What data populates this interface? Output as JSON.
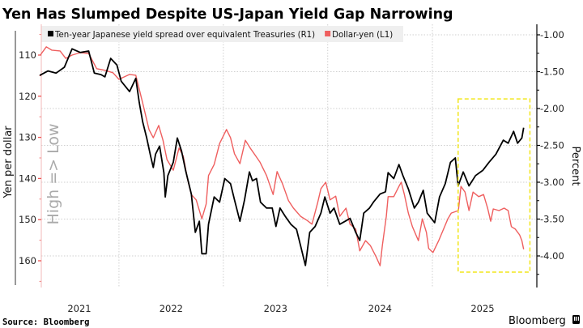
{
  "chart_data": {
    "type": "line",
    "title": "Yen Has Slumped Despite US-Japan Yield Gap Narrowing",
    "source": "Source: Bloomberg",
    "brand": "Bloomberg",
    "x_ticks": [
      "2021",
      "2022",
      "2023",
      "2024",
      "2025"
    ],
    "left_axis": {
      "label": "Yen per dollar",
      "annotation": "High => Low",
      "inverted": true,
      "range": [
        103,
        166.5
      ],
      "ticks": [
        "110",
        "120",
        "130",
        "140",
        "150",
        "160"
      ],
      "tick_values": [
        110,
        120,
        130,
        140,
        150,
        160
      ]
    },
    "right_axis": {
      "label": "Percent",
      "range": [
        -4.43,
        -0.89
      ],
      "ticks": [
        "-1.00",
        "-1.50",
        "-2.00",
        "-2.50",
        "-3.00",
        "-3.50",
        "-4.00"
      ],
      "tick_values": [
        -1.0,
        -1.5,
        -2.0,
        -2.5,
        -3.0,
        -3.5,
        -4.0
      ]
    },
    "grid": true,
    "legend_position": "top",
    "highlight_box": {
      "x": [
        "2025-04-01",
        "2025-12-08"
      ],
      "y_right": [
        -1.87,
        -4.22
      ],
      "color": "#f2e61c",
      "style": "dashed"
    },
    "series": [
      {
        "name": "Ten-year Japanese yield spread over equivalent Treasuries (R1)",
        "axis": "right",
        "color": "#000000",
        "points": [
          [
            "2021-03-30",
            -1.55
          ],
          [
            "2021-04-28",
            -1.49
          ],
          [
            "2021-05-26",
            -1.52
          ],
          [
            "2021-06-24",
            -1.44
          ],
          [
            "2021-07-21",
            -1.19
          ],
          [
            "2021-08-19",
            -1.24
          ],
          [
            "2021-09-17",
            -1.22
          ],
          [
            "2021-10-07",
            -1.52
          ],
          [
            "2021-10-30",
            -1.54
          ],
          [
            "2021-11-13",
            -1.57
          ],
          [
            "2021-12-03",
            -1.32
          ],
          [
            "2021-12-25",
            -1.41
          ],
          [
            "2022-01-09",
            -1.63
          ],
          [
            "2022-02-07",
            -1.77
          ],
          [
            "2022-03-01",
            -1.59
          ],
          [
            "2022-03-13",
            -1.92
          ],
          [
            "2022-03-25",
            -2.18
          ],
          [
            "2022-04-08",
            -2.4
          ],
          [
            "2022-04-22",
            -2.65
          ],
          [
            "2022-05-01",
            -2.8
          ],
          [
            "2022-05-09",
            -2.62
          ],
          [
            "2022-05-23",
            -2.51
          ],
          [
            "2022-06-07",
            -2.87
          ],
          [
            "2022-06-12",
            -3.2
          ],
          [
            "2022-06-21",
            -2.91
          ],
          [
            "2022-07-10",
            -2.73
          ],
          [
            "2022-07-24",
            -2.4
          ],
          [
            "2022-08-08",
            -2.58
          ],
          [
            "2022-08-22",
            -2.84
          ],
          [
            "2022-09-11",
            -3.16
          ],
          [
            "2022-09-25",
            -3.68
          ],
          [
            "2022-10-09",
            -3.53
          ],
          [
            "2022-10-18",
            -3.97
          ],
          [
            "2022-11-02",
            -3.97
          ],
          [
            "2022-11-10",
            -3.57
          ],
          [
            "2022-11-30",
            -3.2
          ],
          [
            "2022-12-19",
            -3.27
          ],
          [
            "2023-01-06",
            -2.95
          ],
          [
            "2023-01-26",
            -3.02
          ],
          [
            "2023-02-09",
            -3.24
          ],
          [
            "2023-02-28",
            -3.53
          ],
          [
            "2023-03-16",
            -3.24
          ],
          [
            "2023-04-02",
            -2.86
          ],
          [
            "2023-04-13",
            -2.98
          ],
          [
            "2023-04-27",
            -2.95
          ],
          [
            "2023-05-11",
            -3.27
          ],
          [
            "2023-06-01",
            -3.35
          ],
          [
            "2023-06-21",
            -3.35
          ],
          [
            "2023-07-04",
            -3.6
          ],
          [
            "2023-07-18",
            -3.35
          ],
          [
            "2023-08-05",
            -3.46
          ],
          [
            "2023-08-25",
            -3.57
          ],
          [
            "2023-09-14",
            -3.64
          ],
          [
            "2023-09-28",
            -3.86
          ],
          [
            "2023-10-15",
            -4.13
          ],
          [
            "2023-10-30",
            -3.68
          ],
          [
            "2023-11-18",
            -3.6
          ],
          [
            "2023-12-08",
            -3.42
          ],
          [
            "2023-12-22",
            -3.2
          ],
          [
            "2024-01-09",
            -3.42
          ],
          [
            "2024-01-23",
            -3.35
          ],
          [
            "2024-02-12",
            -3.57
          ],
          [
            "2024-03-02",
            -3.53
          ],
          [
            "2024-03-19",
            -3.49
          ],
          [
            "2024-04-08",
            -3.68
          ],
          [
            "2024-04-22",
            -3.79
          ],
          [
            "2024-05-06",
            -3.42
          ],
          [
            "2024-05-26",
            -3.35
          ],
          [
            "2024-06-09",
            -3.27
          ],
          [
            "2024-07-02",
            -3.16
          ],
          [
            "2024-07-21",
            -3.13
          ],
          [
            "2024-07-30",
            -2.87
          ],
          [
            "2024-08-19",
            -2.95
          ],
          [
            "2024-09-06",
            -2.76
          ],
          [
            "2024-09-20",
            -2.91
          ],
          [
            "2024-10-09",
            -3.09
          ],
          [
            "2024-10-30",
            -3.35
          ],
          [
            "2024-11-13",
            -3.27
          ],
          [
            "2024-11-30",
            -3.11
          ],
          [
            "2024-12-14",
            -3.42
          ],
          [
            "2025-01-09",
            -3.55
          ],
          [
            "2025-01-26",
            -3.2
          ],
          [
            "2025-02-15",
            -3.02
          ],
          [
            "2025-03-05",
            -2.73
          ],
          [
            "2025-03-22",
            -2.67
          ],
          [
            "2025-04-01",
            -3.05
          ],
          [
            "2025-04-19",
            -2.86
          ],
          [
            "2025-05-09",
            -3.05
          ],
          [
            "2025-06-01",
            -2.91
          ],
          [
            "2025-06-26",
            -2.84
          ],
          [
            "2025-07-18",
            -2.73
          ],
          [
            "2025-08-11",
            -2.62
          ],
          [
            "2025-09-06",
            -2.43
          ],
          [
            "2025-09-23",
            -2.47
          ],
          [
            "2025-10-12",
            -2.31
          ],
          [
            "2025-10-26",
            -2.47
          ],
          [
            "2025-11-10",
            -2.4
          ],
          [
            "2025-11-16",
            -2.26
          ]
        ]
      },
      {
        "name": "Dollar-yen (L1)",
        "axis": "left",
        "color": "#ef5f5f",
        "points": [
          [
            "2021-04-01",
            110.0
          ],
          [
            "2021-04-22",
            108.0
          ],
          [
            "2021-05-11",
            108.8
          ],
          [
            "2021-06-09",
            109.0
          ],
          [
            "2021-06-29",
            110.8
          ],
          [
            "2021-07-21",
            110.0
          ],
          [
            "2021-08-19",
            109.4
          ],
          [
            "2021-09-17",
            109.6
          ],
          [
            "2021-10-15",
            113.3
          ],
          [
            "2021-11-13",
            113.7
          ],
          [
            "2021-12-11",
            114.3
          ],
          [
            "2022-01-01",
            115.9
          ],
          [
            "2022-02-07",
            114.7
          ],
          [
            "2022-03-01",
            114.9
          ],
          [
            "2022-03-13",
            118.3
          ],
          [
            "2022-03-27",
            122.2
          ],
          [
            "2022-04-16",
            128.1
          ],
          [
            "2022-05-01",
            130.1
          ],
          [
            "2022-05-20",
            127.1
          ],
          [
            "2022-06-04",
            130.7
          ],
          [
            "2022-06-18",
            135.4
          ],
          [
            "2022-07-10",
            138.0
          ],
          [
            "2022-07-30",
            132.6
          ],
          [
            "2022-08-14",
            134.6
          ],
          [
            "2022-08-28",
            139.9
          ],
          [
            "2022-09-11",
            143.9
          ],
          [
            "2022-09-28",
            145.2
          ],
          [
            "2022-10-18",
            149.8
          ],
          [
            "2022-11-02",
            146.2
          ],
          [
            "2022-11-10",
            139.3
          ],
          [
            "2022-11-30",
            136.6
          ],
          [
            "2022-12-19",
            131.5
          ],
          [
            "2023-01-12",
            128.1
          ],
          [
            "2023-01-26",
            130.1
          ],
          [
            "2023-02-09",
            134.0
          ],
          [
            "2023-02-28",
            136.4
          ],
          [
            "2023-03-19",
            130.7
          ],
          [
            "2023-04-05",
            132.6
          ],
          [
            "2023-04-25",
            134.6
          ],
          [
            "2023-05-09",
            136.0
          ],
          [
            "2023-06-01",
            139.3
          ],
          [
            "2023-06-24",
            143.9
          ],
          [
            "2023-07-08",
            138.3
          ],
          [
            "2023-07-27",
            141.3
          ],
          [
            "2023-08-17",
            145.4
          ],
          [
            "2023-09-03",
            147.2
          ],
          [
            "2023-09-28",
            149.2
          ],
          [
            "2023-10-21",
            150.2
          ],
          [
            "2023-11-07",
            151.1
          ],
          [
            "2023-11-27",
            145.8
          ],
          [
            "2023-12-08",
            142.5
          ],
          [
            "2023-12-25",
            140.9
          ],
          [
            "2024-01-09",
            145.2
          ],
          [
            "2024-01-29",
            144.3
          ],
          [
            "2024-02-12",
            149.2
          ],
          [
            "2024-03-05",
            147.2
          ],
          [
            "2024-03-19",
            151.1
          ],
          [
            "2024-04-08",
            152.3
          ],
          [
            "2024-04-22",
            157.6
          ],
          [
            "2024-05-12",
            155.1
          ],
          [
            "2024-05-29",
            156.3
          ],
          [
            "2024-06-18",
            159.0
          ],
          [
            "2024-07-02",
            161.2
          ],
          [
            "2024-07-10",
            156.3
          ],
          [
            "2024-07-24",
            149.2
          ],
          [
            "2024-07-30",
            144.4
          ],
          [
            "2024-08-19",
            144.4
          ],
          [
            "2024-09-06",
            141.9
          ],
          [
            "2024-09-14",
            140.9
          ],
          [
            "2024-09-25",
            143.9
          ],
          [
            "2024-10-09",
            148.4
          ],
          [
            "2024-10-23",
            151.7
          ],
          [
            "2024-11-13",
            155.1
          ],
          [
            "2024-11-27",
            149.8
          ],
          [
            "2024-12-11",
            153.1
          ],
          [
            "2024-12-19",
            157.0
          ],
          [
            "2025-01-03",
            158.0
          ],
          [
            "2025-01-23",
            155.1
          ],
          [
            "2025-02-09",
            152.3
          ],
          [
            "2025-02-24",
            149.8
          ],
          [
            "2025-03-08",
            148.4
          ],
          [
            "2025-04-02",
            147.8
          ],
          [
            "2025-04-11",
            141.9
          ],
          [
            "2025-04-25",
            143.3
          ],
          [
            "2025-05-09",
            147.8
          ],
          [
            "2025-05-23",
            143.3
          ],
          [
            "2025-06-12",
            144.4
          ],
          [
            "2025-06-29",
            143.9
          ],
          [
            "2025-07-13",
            147.2
          ],
          [
            "2025-07-24",
            150.4
          ],
          [
            "2025-08-02",
            147.4
          ],
          [
            "2025-08-22",
            147.8
          ],
          [
            "2025-09-09",
            147.2
          ],
          [
            "2025-09-23",
            147.8
          ],
          [
            "2025-10-04",
            151.7
          ],
          [
            "2025-10-18",
            152.3
          ],
          [
            "2025-11-02",
            153.7
          ],
          [
            "2025-11-10",
            155.1
          ],
          [
            "2025-11-16",
            157.2
          ]
        ]
      }
    ]
  }
}
